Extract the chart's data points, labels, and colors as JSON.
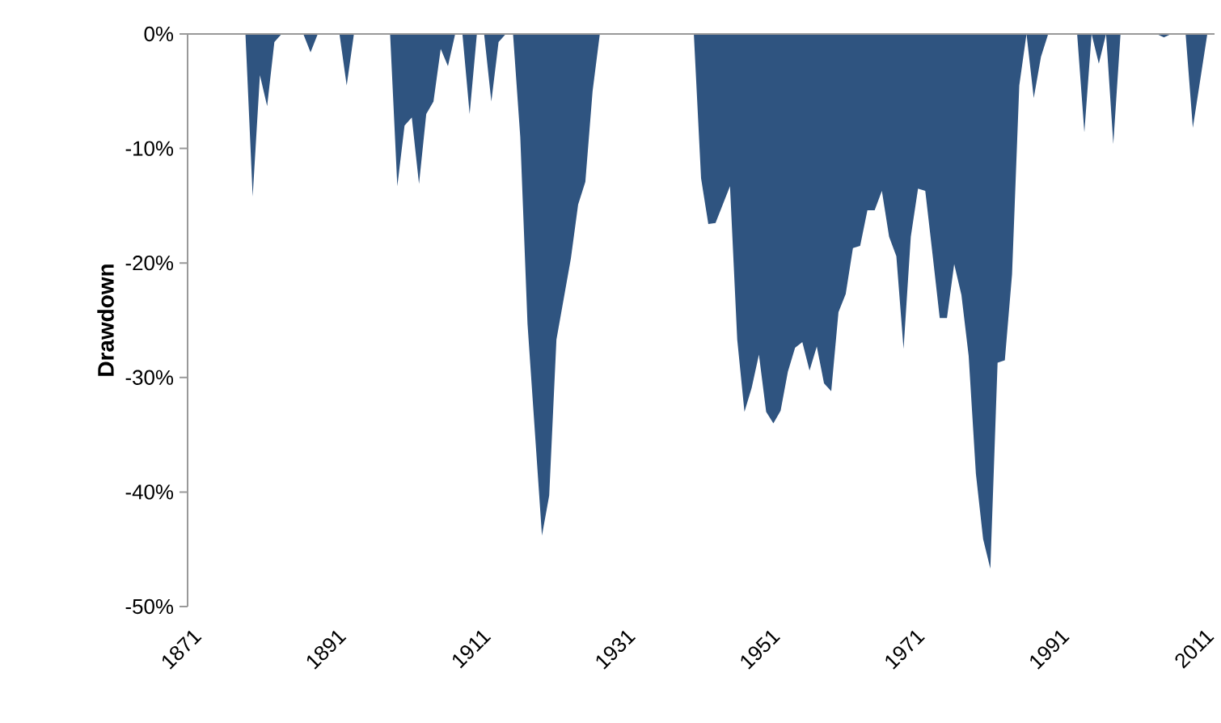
{
  "chart_data": {
    "type": "area",
    "ylabel": "Drawdown",
    "color": "#2f5480",
    "xlim": [
      1871,
      2013
    ],
    "ylim": [
      -50,
      0
    ],
    "xticks": [
      1871,
      1891,
      1911,
      1931,
      1951,
      1971,
      1991,
      2011
    ],
    "yticks": [
      {
        "value": -50,
        "label": "-50%"
      },
      {
        "value": -40,
        "label": "-40%"
      },
      {
        "value": -30,
        "label": "-30%"
      },
      {
        "value": -20,
        "label": "-20%"
      },
      {
        "value": -10,
        "label": "-10%"
      },
      {
        "value": 0,
        "label": "0%"
      }
    ],
    "x": [
      1871,
      1879,
      1880,
      1881,
      1882,
      1883,
      1884,
      1887,
      1888,
      1889,
      1892,
      1893,
      1894,
      1899,
      1900,
      1901,
      1902,
      1903,
      1904,
      1905,
      1906,
      1907,
      1908,
      1909,
      1910,
      1911,
      1912,
      1913,
      1914,
      1915,
      1916,
      1917,
      1918,
      1920,
      1921,
      1922,
      1924,
      1925,
      1926,
      1927,
      1928,
      1940,
      1941,
      1942,
      1943,
      1944,
      1946,
      1947,
      1948,
      1949,
      1950,
      1951,
      1952,
      1953,
      1954,
      1955,
      1956,
      1957,
      1958,
      1959,
      1960,
      1961,
      1962,
      1963,
      1964,
      1965,
      1966,
      1967,
      1968,
      1969,
      1970,
      1971,
      1972,
      1973,
      1974,
      1975,
      1976,
      1977,
      1978,
      1979,
      1980,
      1981,
      1982,
      1983,
      1984,
      1985,
      1986,
      1987,
      1988,
      1989,
      1990,
      1994,
      1995,
      1996,
      1997,
      1998,
      1999,
      2000,
      2005,
      2006,
      2007,
      2009,
      2010,
      2012
    ],
    "values": [
      0,
      0,
      -14.2,
      -3.6,
      -6.3,
      -0.7,
      0,
      0,
      -1.6,
      0,
      0,
      -4.5,
      0,
      0,
      -13.3,
      -8.0,
      -7.3,
      -13.1,
      -7.0,
      -5.9,
      -1.3,
      -2.8,
      0,
      0,
      -7.0,
      0,
      0,
      -5.9,
      -0.7,
      0,
      0,
      -9.0,
      -25.3,
      -43.8,
      -40.3,
      -26.7,
      -19.6,
      -14.9,
      -12.9,
      -5.0,
      0,
      0,
      0,
      -12.6,
      -16.6,
      -16.5,
      -13.3,
      -26.7,
      -33.0,
      -30.9,
      -28.0,
      -33.0,
      -34.0,
      -32.9,
      -29.5,
      -27.4,
      -26.9,
      -29.4,
      -27.3,
      -30.5,
      -31.2,
      -24.3,
      -22.7,
      -18.7,
      -18.5,
      -15.4,
      -15.4,
      -13.7,
      -17.7,
      -19.4,
      -27.5,
      -17.7,
      -13.5,
      -13.7,
      -19.2,
      -24.8,
      -24.8,
      -20.1,
      -22.8,
      -28.1,
      -38.4,
      -44.1,
      -46.7,
      -28.7,
      -28.5,
      -21.0,
      -4.5,
      0,
      -5.6,
      -2.0,
      0,
      0,
      -8.6,
      0,
      -2.6,
      0,
      -9.6,
      0,
      0,
      -0.3,
      0,
      0,
      -8.2,
      0
    ]
  }
}
